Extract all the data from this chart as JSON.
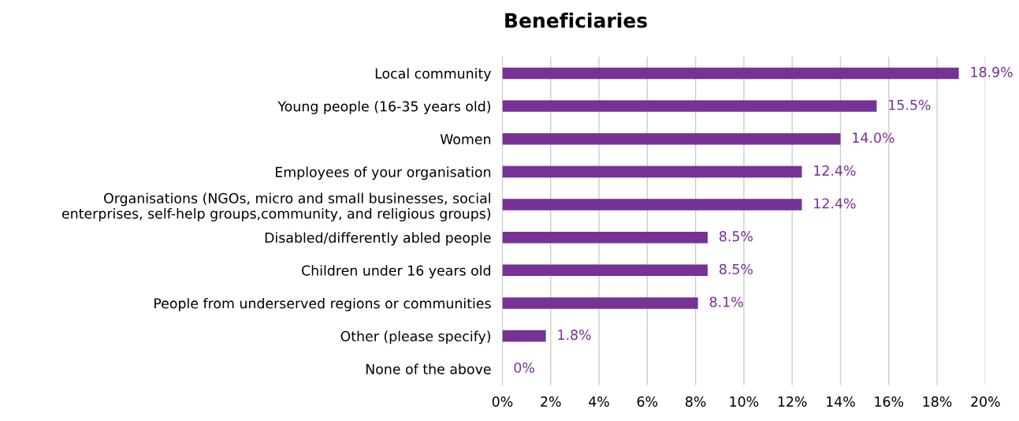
{
  "chart_data": {
    "type": "bar",
    "orientation": "horizontal",
    "title": "Beneficiaries",
    "categories": [
      "Local community",
      "Young people (16-35 years old)",
      "Women",
      "Employees of your organisation",
      "Organisations (NGOs, micro and small businesses, social\nenterprises, self-help groups,community, and religious groups)",
      "Disabled/differently abled people",
      "Children under 16 years old",
      "People from underserved regions or communities",
      "Other (please specify)",
      "None of the above"
    ],
    "values": [
      18.9,
      15.5,
      14.0,
      12.4,
      12.4,
      8.5,
      8.5,
      8.1,
      1.8,
      0
    ],
    "value_labels": [
      "18.9%",
      "15.5%",
      "14.0%",
      "12.4%",
      "12.4%",
      "8.5%",
      "8.5%",
      "8.1%",
      "1.8%",
      "0%"
    ],
    "color": "#763295",
    "xlim": [
      0,
      20
    ],
    "xticks": [
      {
        "value": 0,
        "label": "0%"
      },
      {
        "value": 2,
        "label": "2%"
      },
      {
        "value": 4,
        "label": "4%"
      },
      {
        "value": 6,
        "label": "6%"
      },
      {
        "value": 8,
        "label": "8%"
      },
      {
        "value": 10,
        "label": "10%"
      },
      {
        "value": 12,
        "label": "12%"
      },
      {
        "value": 14,
        "label": "14%"
      },
      {
        "value": 16,
        "label": "16%"
      },
      {
        "value": 18,
        "label": "18%"
      },
      {
        "value": 20,
        "label": "20%"
      }
    ],
    "grid": "x"
  }
}
